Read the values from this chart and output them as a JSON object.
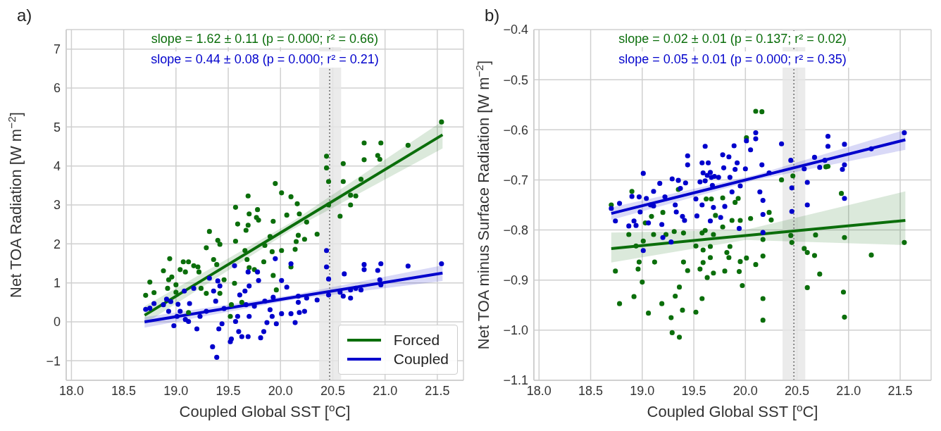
{
  "chart_data": [
    {
      "type": "scatter",
      "title": "a)",
      "xlabel": "Coupled Global SST [$^{o}$C]",
      "ylabel": "Net TOA Radiation [W m$^{−2}$]",
      "annotations": [
        "slope = 1.62 ± 0.11 (p = 0.000; r² = 0.66)",
        "slope = 0.44 ± 0.08 (p = 0.000; r² = 0.21)"
      ],
      "xlim": [
        17.95,
        21.75
      ],
      "xticks": [
        {
          "value": 18,
          "label": "18.0"
        },
        18.5,
        {
          "value": 19,
          "label": "19.0"
        },
        19.5,
        {
          "value": 20,
          "label": "20.0"
        },
        20.5,
        {
          "value": 21,
          "label": "21.0"
        },
        21.5
      ],
      "ylim": [
        -1.5,
        7.5
      ],
      "yticks": [
        {
          "value": -1,
          "label": "−1"
        },
        0,
        1,
        2,
        3,
        4,
        5,
        6,
        7
      ],
      "grid": true,
      "legend": "bottom right",
      "marker": "circle",
      "ref_lines": [
        {
          "axis": "x",
          "value": 20.47,
          "color": "#888888",
          "line_style": "dotted"
        }
      ],
      "bands": [
        {
          "axis": "x",
          "from": 20.37,
          "to": 20.58,
          "color": "#e6e6e6"
        }
      ],
      "series": [
        {
          "type": "line",
          "marker": "none",
          "name": "Forced",
          "color": "#0b6e0b",
          "x": [
            18.7,
            20.1,
            21.55
          ],
          "values": [
            0.17,
            2.45,
            4.8
          ],
          "lower": [
            -0.05,
            2.35,
            4.45
          ],
          "upper": [
            0.4,
            2.55,
            5.15
          ]
        },
        {
          "type": "line",
          "marker": "none",
          "name": "Coupled",
          "color": "#0000cc",
          "x": [
            18.7,
            20.1,
            21.55
          ],
          "values": [
            0.0,
            0.62,
            1.25
          ],
          "lower": [
            -0.15,
            0.56,
            1.05
          ],
          "upper": [
            0.12,
            0.68,
            1.45
          ]
        },
        {
          "color": "#0b6e0b",
          "x": [
            18.71,
            18.75,
            18.79,
            18.88,
            18.92,
            18.94,
            18.93,
            18.96,
            19.0,
            19.0,
            19.04,
            19.07,
            19.12,
            19.09,
            19.12,
            19.17,
            19.21,
            19.22,
            19.24,
            19.29,
            19.29,
            19.32,
            19.36,
            19.39,
            19.4,
            19.42,
            19.42,
            19.46,
            19.53,
            19.52,
            19.56,
            19.57,
            19.57,
            19.59,
            19.63,
            19.66,
            19.67,
            19.68,
            19.69,
            19.69,
            19.7,
            19.7,
            19.75,
            19.77,
            19.78,
            19.79,
            19.84,
            19.85,
            19.9,
            19.92,
            19.93,
            19.93,
            19.95,
            19.96,
            20.01,
            20.01,
            20.06,
            20.1,
            20.1,
            20.14,
            20.15,
            20.16,
            20.17,
            20.18,
            20.23,
            20.25,
            20.35,
            20.44,
            20.44,
            20.46,
            20.46,
            20.57,
            20.6,
            20.6,
            20.67,
            20.67,
            20.72,
            20.77,
            20.8,
            20.8,
            20.93,
            20.95,
            20.96,
            21.22,
            21.54
          ],
          "values": [
            0.68,
            1.02,
            0.75,
            1.31,
            0.86,
            1.62,
            1.08,
            1.15,
            0.76,
            0.95,
            1.34,
            1.54,
            1.54,
            1.28,
            0.24,
            1.44,
            1.41,
            1.28,
            0.86,
            1.9,
            0.73,
            2.32,
            1.6,
            1.47,
            2.09,
            1.99,
            0.73,
            1.08,
            0.44,
            0.14,
            0.99,
            2.94,
            2.07,
            2.51,
            0.5,
            1.83,
            2.35,
            1.6,
            2.48,
            3.23,
            2.77,
            1.39,
            1.34,
            2.68,
            2.88,
            2.61,
            1.54,
            1.96,
            2.19,
            1.8,
            1.19,
            2.58,
            3.55,
            0.82,
            3.31,
            1.83,
            2.74,
            3.21,
            1.41,
            1.86,
            2.06,
            3.03,
            2.22,
            2.77,
            2.12,
            2.56,
            2.25,
            4.25,
            3.95,
            3.0,
            3.6,
            2.71,
            4.06,
            3.6,
            3.0,
            3.25,
            3.23,
            3.66,
            4.59,
            4.16,
            4.27,
            4.17,
            4.59,
            4.53,
            5.13
          ]
        },
        {
          "color": "#0000cc",
          "x": [
            18.71,
            18.75,
            18.79,
            18.88,
            18.91,
            18.93,
            18.95,
            18.98,
            19.01,
            19.02,
            19.04,
            19.08,
            19.09,
            19.12,
            19.13,
            19.17,
            19.2,
            19.23,
            19.29,
            19.32,
            19.35,
            19.36,
            19.38,
            19.39,
            19.4,
            19.41,
            19.42,
            19.44,
            19.46,
            19.52,
            19.53,
            19.56,
            19.57,
            19.59,
            19.6,
            19.61,
            19.63,
            19.66,
            19.67,
            19.69,
            19.69,
            19.7,
            19.7,
            19.75,
            19.78,
            19.79,
            19.81,
            19.84,
            19.85,
            19.87,
            19.9,
            19.92,
            19.93,
            19.95,
            19.96,
            20.01,
            20.01,
            20.06,
            20.1,
            20.1,
            20.14,
            20.17,
            20.17,
            20.18,
            20.23,
            20.25,
            20.35,
            20.44,
            20.44,
            20.46,
            20.46,
            20.57,
            20.6,
            20.61,
            20.67,
            20.67,
            20.72,
            20.77,
            20.8,
            20.8,
            20.93,
            20.95,
            20.96,
            20.96,
            21.22,
            21.54
          ],
          "values": [
            0.32,
            0.35,
            0.47,
            0.44,
            0.58,
            0.27,
            0.52,
            -0.1,
            0.14,
            0.45,
            0.27,
            0.79,
            0.06,
            0.01,
            0.47,
            0.86,
            -0.18,
            0.14,
            0.27,
            1.12,
            -0.64,
            0.79,
            0.53,
            -0.91,
            1.05,
            -0.18,
            0.92,
            -0.05,
            0.34,
            -0.51,
            -0.44,
            1.44,
            0.01,
            0.14,
            -0.25,
            0.69,
            -0.38,
            0.79,
            0.44,
            -0.38,
            1.28,
            0.92,
            0.14,
            0.4,
            1.28,
            1.06,
            -0.41,
            -0.25,
            0.53,
            -0.02,
            0.31,
            0.14,
            0.63,
            1.62,
            -0.05,
            0.21,
            1.06,
            0.89,
            1.49,
            0.21,
            -0.02,
            0.5,
            0.66,
            0.24,
            0.27,
            0.61,
            0.56,
            1.83,
            1.41,
            1.1,
            0.69,
            0.76,
            0.66,
            1.23,
            0.61,
            0.82,
            0.86,
            0.82,
            1.34,
            1.47,
            1.32,
            1.08,
            0.95,
            1.49,
            1.43,
            1.49
          ]
        }
      ]
    },
    {
      "type": "scatter",
      "title": "b)",
      "xlabel": "Coupled Global SST [$^{o}$C]",
      "ylabel": "Net TOA minus Surface Radiation [W m$^{−2}$]",
      "annotations": [
        "slope = 0.02 ± 0.01 (p = 0.137; r² = 0.02)",
        "slope = 0.05 ± 0.01 (p = 0.000; r² = 0.35)"
      ],
      "xlim": [
        17.95,
        21.8
      ],
      "xticks": [
        {
          "value": 18,
          "label": "18.0"
        },
        18.5,
        {
          "value": 19,
          "label": "19.0"
        },
        19.5,
        {
          "value": 20,
          "label": "20.0"
        },
        20.5,
        {
          "value": 21,
          "label": "21.0"
        },
        21.5
      ],
      "ylim": [
        -1.1,
        -0.4
      ],
      "yticks": [
        {
          "value": -1.1,
          "label": "−1.1"
        },
        {
          "value": -1.0,
          "label": "−1.0"
        },
        {
          "value": -0.9,
          "label": "−0.9"
        },
        {
          "value": -0.8,
          "label": "−0.8"
        },
        {
          "value": -0.7,
          "label": "−0.7"
        },
        {
          "value": -0.6,
          "label": "−0.6"
        },
        {
          "value": -0.5,
          "label": "−0.5"
        },
        {
          "value": -0.4,
          "label": "−0.4"
        }
      ],
      "grid": true,
      "marker": "circle",
      "ref_lines": [
        {
          "axis": "x",
          "value": 20.47,
          "color": "#888888",
          "line_style": "dotted"
        }
      ],
      "bands": [
        {
          "axis": "x",
          "from": 20.36,
          "to": 20.58,
          "color": "#e6e6e6"
        }
      ],
      "series": [
        {
          "type": "line",
          "marker": "none",
          "color": "#0b6e0b",
          "x": [
            18.7,
            20.0,
            21.55
          ],
          "values": [
            -0.837,
            -0.811,
            -0.781
          ],
          "lower": [
            -0.865,
            -0.82,
            -0.83
          ],
          "upper": [
            -0.805,
            -0.8,
            -0.723
          ]
        },
        {
          "type": "line",
          "marker": "none",
          "color": "#0000cc",
          "x": [
            18.7,
            20.1,
            21.55
          ],
          "values": [
            -0.767,
            -0.695,
            -0.62
          ],
          "lower": [
            -0.78,
            -0.7,
            -0.64
          ],
          "upper": [
            -0.755,
            -0.69,
            -0.6
          ]
        },
        {
          "color": "#0b6e0b",
          "x": [
            18.7,
            18.74,
            18.78,
            18.87,
            18.9,
            18.92,
            18.94,
            18.96,
            18.97,
            19.0,
            19.01,
            19.03,
            19.06,
            19.09,
            19.11,
            19.12,
            19.19,
            19.2,
            19.23,
            19.28,
            19.29,
            19.31,
            19.32,
            19.35,
            19.36,
            19.36,
            19.39,
            19.4,
            19.4,
            19.44,
            19.52,
            19.52,
            19.56,
            19.58,
            19.58,
            19.59,
            19.59,
            19.61,
            19.62,
            19.63,
            19.66,
            19.66,
            19.67,
            19.69,
            19.69,
            19.71,
            19.78,
            19.78,
            19.8,
            19.82,
            19.84,
            19.85,
            19.87,
            19.9,
            19.93,
            19.94,
            19.95,
            19.95,
            19.97,
            20.01,
            20.01,
            20.05,
            20.1,
            20.16,
            20.1,
            20.17,
            20.17,
            20.17,
            20.17,
            20.23,
            20.25,
            20.35,
            20.44,
            20.45,
            20.46,
            20.57,
            20.6,
            20.6,
            20.67,
            20.68,
            20.72,
            20.78,
            20.8,
            20.93,
            20.95,
            20.96,
            20.96,
            21.22,
            21.54
          ],
          "values": [
            -0.75,
            -0.882,
            -0.947,
            -0.809,
            -0.723,
            -0.933,
            -0.832,
            -0.878,
            -0.864,
            -0.904,
            -0.822,
            -0.786,
            -0.966,
            -0.773,
            -0.809,
            -0.864,
            -0.947,
            -0.765,
            -0.809,
            -0.975,
            -1.005,
            -0.803,
            -0.932,
            -0.719,
            -0.914,
            -1.014,
            -0.96,
            -0.806,
            -0.864,
            -0.881,
            -0.964,
            -0.832,
            -0.878,
            -0.937,
            -0.806,
            -0.865,
            -0.84,
            -0.801,
            -0.738,
            -0.895,
            -0.855,
            -0.833,
            -0.738,
            -0.886,
            -0.809,
            -0.771,
            -0.736,
            -0.794,
            -0.882,
            -0.845,
            -0.855,
            -0.833,
            -0.781,
            -0.745,
            -0.737,
            -0.883,
            -0.781,
            -0.863,
            -0.911,
            -0.856,
            -0.616,
            -0.777,
            -0.563,
            -0.564,
            -0.869,
            -0.852,
            -0.937,
            -0.98,
            -0.819,
            -0.765,
            -0.78,
            -0.7,
            -0.811,
            -0.825,
            -0.692,
            -0.837,
            -0.915,
            -0.845,
            -0.851,
            -0.81,
            -0.888,
            -0.674,
            -0.673,
            -0.727,
            -0.924,
            -0.974,
            -0.815,
            -0.85,
            -0.825
          ]
        },
        {
          "color": "#0000cc",
          "x": [
            18.7,
            18.74,
            18.78,
            18.87,
            18.9,
            18.92,
            18.94,
            18.97,
            18.98,
            19.01,
            19.01,
            19.04,
            19.06,
            19.08,
            19.11,
            19.11,
            19.17,
            19.19,
            19.2,
            19.22,
            19.28,
            19.29,
            19.32,
            19.33,
            19.35,
            19.37,
            19.39,
            19.41,
            19.42,
            19.44,
            19.44,
            19.52,
            19.53,
            19.56,
            19.58,
            19.58,
            19.59,
            19.61,
            19.61,
            19.63,
            19.64,
            19.66,
            19.66,
            19.67,
            19.68,
            19.69,
            19.7,
            19.74,
            19.76,
            19.78,
            19.79,
            19.8,
            19.84,
            19.85,
            19.87,
            19.89,
            19.9,
            19.92,
            19.94,
            19.95,
            20.0,
            20.01,
            20.05,
            20.1,
            20.1,
            20.14,
            20.16,
            20.17,
            20.17,
            20.17,
            20.23,
            20.35,
            20.44,
            20.45,
            20.45,
            20.57,
            20.6,
            20.6,
            20.67,
            20.72,
            20.77,
            20.8,
            20.8,
            20.94,
            20.96,
            20.96,
            20.96,
            21.22,
            21.54
          ],
          "values": [
            -0.757,
            -0.782,
            -0.747,
            -0.792,
            -0.733,
            -0.782,
            -0.791,
            -0.734,
            -0.764,
            -0.687,
            -0.841,
            -0.737,
            -0.786,
            -0.75,
            -0.723,
            -0.752,
            -0.707,
            -0.789,
            -0.815,
            -0.734,
            -0.824,
            -0.698,
            -0.75,
            -0.764,
            -0.701,
            -0.717,
            -0.773,
            -0.781,
            -0.706,
            -0.652,
            -0.67,
            -0.738,
            -0.772,
            -0.704,
            -0.666,
            -0.75,
            -0.686,
            -0.633,
            -0.702,
            -0.691,
            -0.666,
            -0.685,
            -0.782,
            -0.695,
            -0.711,
            -0.755,
            -0.693,
            -0.695,
            -0.775,
            -0.65,
            -0.676,
            -0.753,
            -0.654,
            -0.695,
            -0.724,
            -0.632,
            -0.679,
            -0.666,
            -0.797,
            -0.712,
            -0.678,
            -0.622,
            -0.64,
            -0.618,
            -0.606,
            -0.724,
            -0.67,
            -0.741,
            -0.769,
            -0.805,
            -0.686,
            -0.628,
            -0.661,
            -0.716,
            -0.763,
            -0.678,
            -0.705,
            -0.75,
            -0.655,
            -0.675,
            -0.661,
            -0.613,
            -0.633,
            -0.679,
            -0.67,
            -0.737,
            -0.629,
            -0.638,
            -0.606
          ]
        }
      ]
    }
  ]
}
